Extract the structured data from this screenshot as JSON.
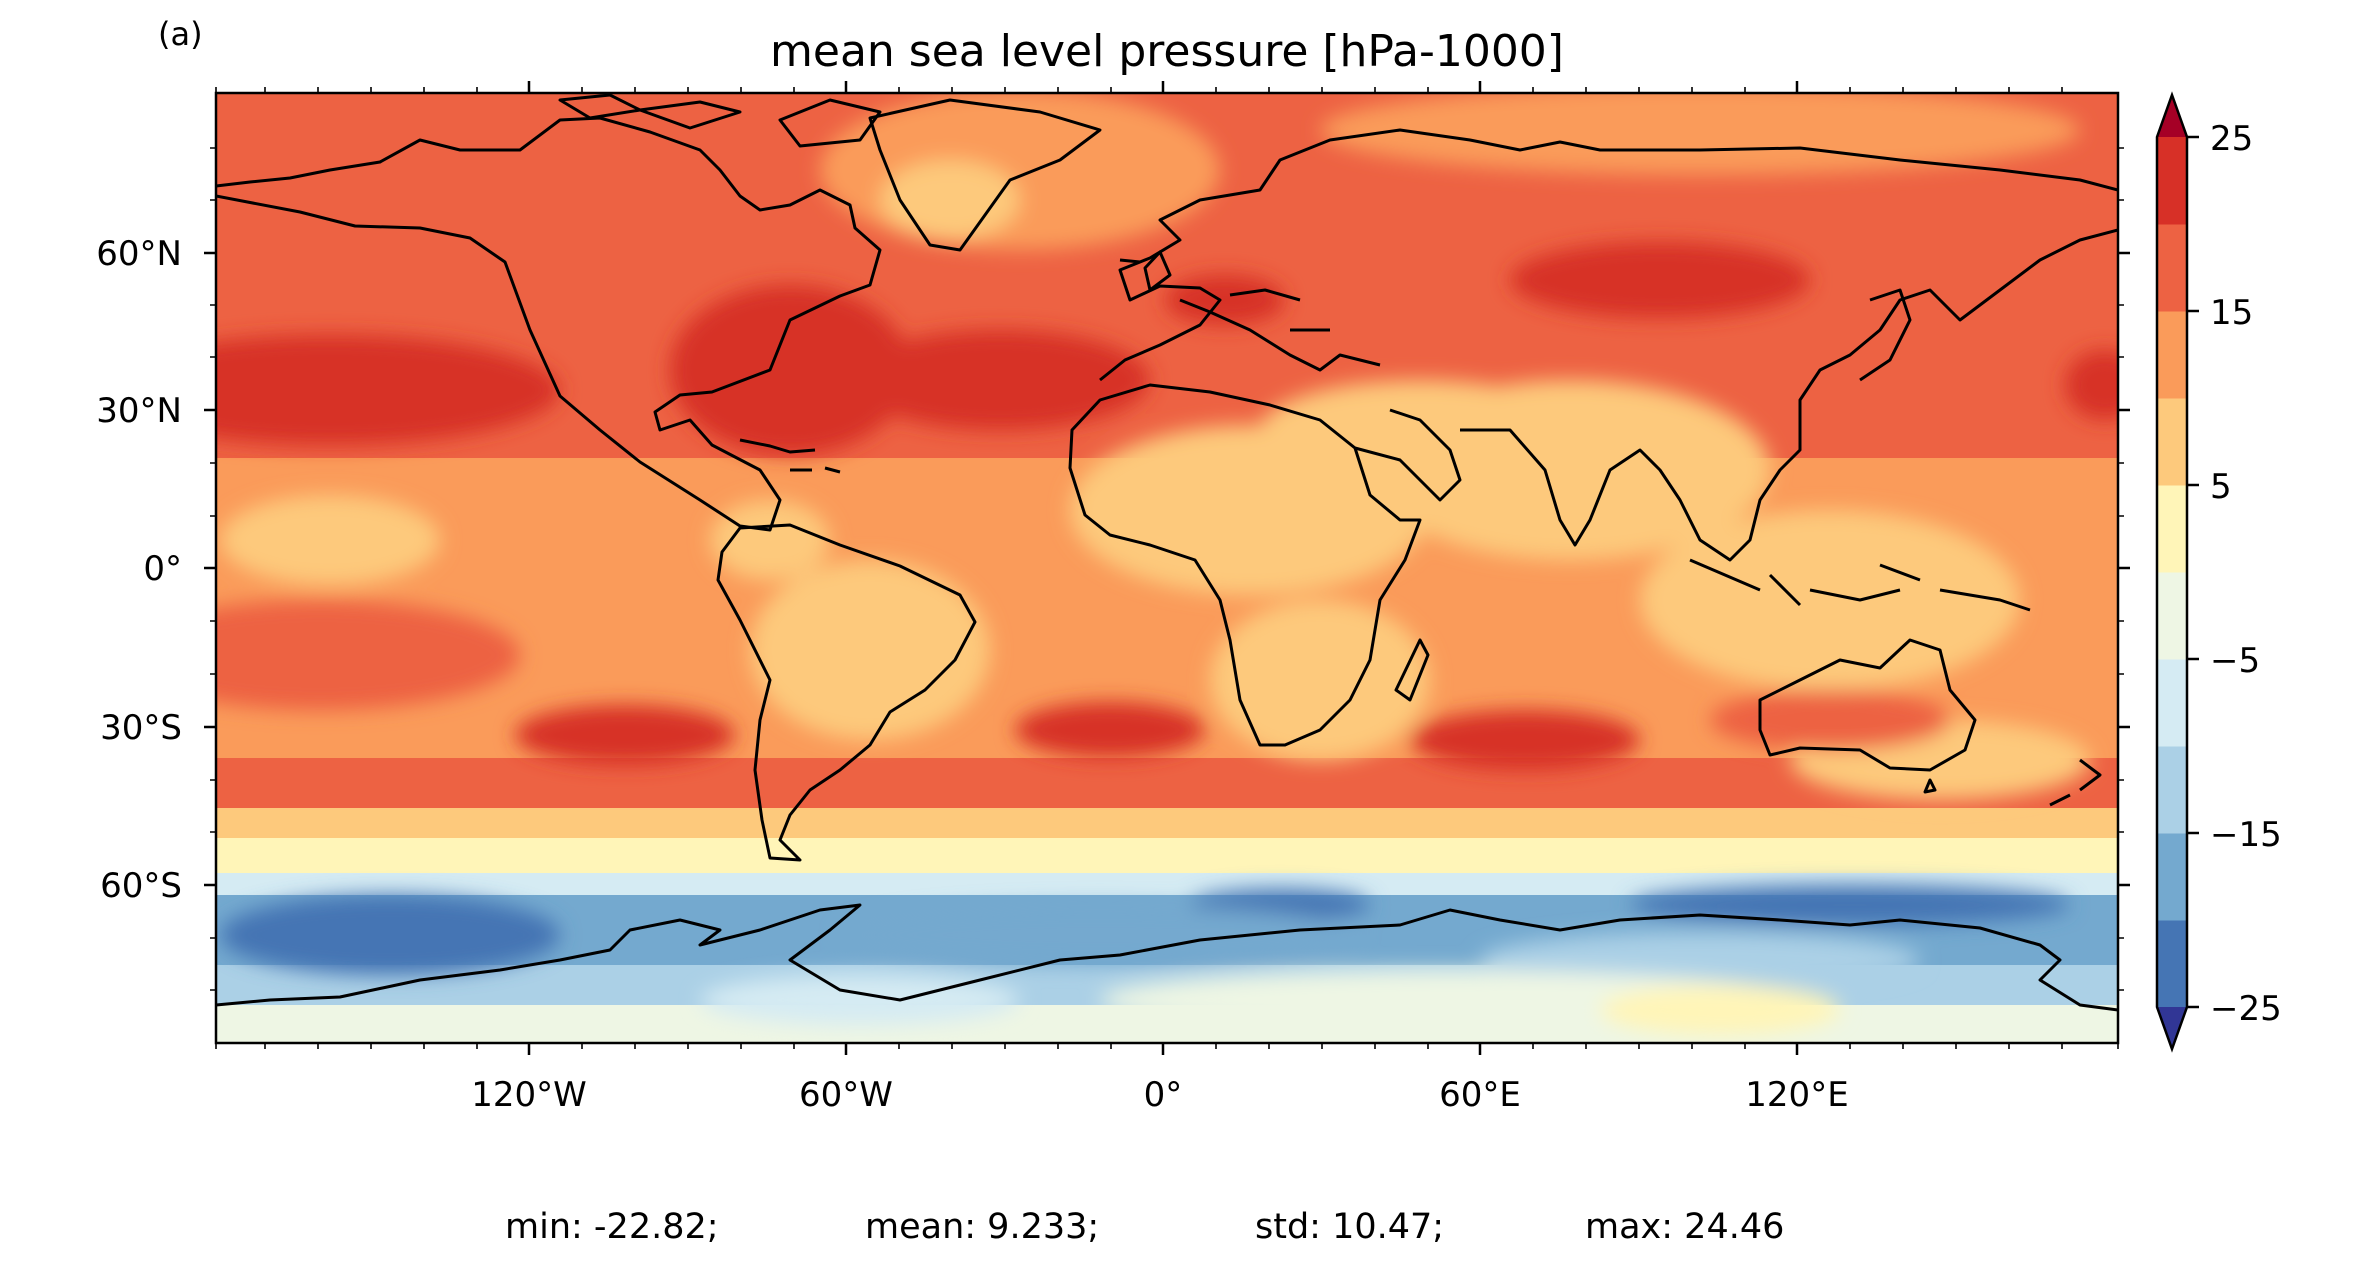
{
  "panel_label": "(a)",
  "title": "mean sea level pressure [hPa-1000]",
  "stats": {
    "min": "min: -22.82;",
    "mean": "mean: 9.233;",
    "std": "std: 10.47;",
    "max": "max: 24.46"
  },
  "axes": {
    "x_ticks": [
      "120°W",
      "60°W",
      "0°",
      "60°E",
      "120°E"
    ],
    "y_ticks": [
      "60°N",
      "30°N",
      "0°",
      "30°S",
      "60°S"
    ]
  },
  "colorbar": {
    "tick_labels": [
      "25",
      "15",
      "5",
      "−5",
      "−15",
      "−25"
    ],
    "levels": [
      -25,
      -20,
      -15,
      -10,
      -5,
      0,
      5,
      10,
      15,
      20,
      25
    ],
    "colors": [
      "#4575b4",
      "#74a9cf",
      "#abd0e6",
      "#d5ebf3",
      "#eef6e4",
      "#fff5b8",
      "#fdc97c",
      "#fa9b5a",
      "#ed6243",
      "#d73027"
    ],
    "under_color": "#313695",
    "over_color": "#a50026"
  },
  "map_description_colors": {
    "land_outline": "#000000"
  }
}
